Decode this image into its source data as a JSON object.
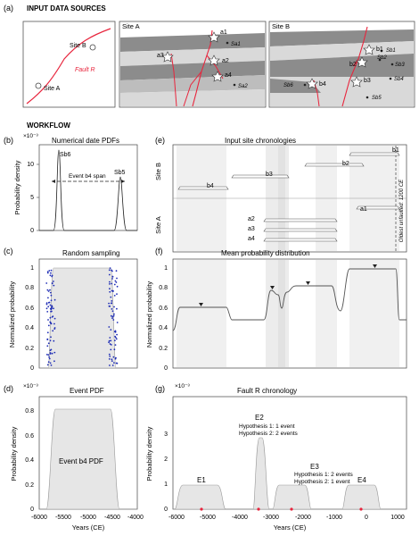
{
  "sections": {
    "a_label": "(a)",
    "a_title": "INPUT DATA SOURCES",
    "workflow_title": "WORKFLOW"
  },
  "map": {
    "site_a": "Site A",
    "site_b": "Site B",
    "fault": "Fault R"
  },
  "site_a_panel": {
    "title": "Site A",
    "labels": [
      "a1",
      "Sa1",
      "a3",
      "a2",
      "a4",
      "Sa2"
    ]
  },
  "site_b_panel": {
    "title": "Site B",
    "labels": [
      "b1",
      "Sb1",
      "b2",
      "Sb2",
      "Sb3",
      "Sb4",
      "Sb6",
      "b4",
      "b3",
      "Sb5"
    ]
  },
  "colors": {
    "fault": "#e8243c",
    "unit_dark": "#8c8c8c",
    "unit_light": "#d9d9d9",
    "pdf_fill": "#e6e6e6",
    "samples": "#1f2db5",
    "event_marker": "#e8243c"
  },
  "panels": {
    "b": {
      "label": "(b)",
      "exponent": "×10⁻³",
      "title": "Numerical date PDFs",
      "ylabel": "Probability density",
      "yticks": [
        "0",
        "5",
        "10"
      ],
      "annotations": [
        "Sb6",
        "Sb5",
        "Event b4 span"
      ]
    },
    "c": {
      "label": "(c)",
      "title": "Random sampling",
      "ylabel": "Normalized probability",
      "yticks": [
        "0",
        "0.2",
        "0.4",
        "0.6",
        "0.8",
        "1"
      ]
    },
    "d": {
      "label": "(d)",
      "exponent": "×10⁻³",
      "title": "Event PDF",
      "ylabel": "Probability density",
      "yticks": [
        "0",
        "0.2",
        "0.4",
        "0.6",
        "0.8"
      ],
      "inner_label": "Event b4 PDF",
      "xticks": [
        "-6000",
        "-5500",
        "-5000",
        "-4500",
        "-4000"
      ],
      "xlabel": "Years (CE)"
    },
    "e": {
      "label": "(e)",
      "title": "Input site chronologies",
      "ylabel_top": "Site B",
      "ylabel_bottom": "Site A",
      "events": [
        "b1",
        "b2",
        "b3",
        "b4",
        "a1",
        "a2",
        "a3",
        "a4"
      ],
      "right_note": "Oldest unfaulted: 1200 CE"
    },
    "f": {
      "label": "(f)",
      "title": "Mean probability distribution",
      "ylabel": "Normalized probability",
      "yticks": [
        "0",
        "0.2",
        "0.4",
        "0.6",
        "0.8",
        "1"
      ]
    },
    "g": {
      "label": "(g)",
      "exponent": "×10⁻³",
      "title": "Fault R chronology",
      "ylabel": "Probability density",
      "yticks": [
        "0",
        "1",
        "2",
        "3"
      ],
      "xticks": [
        "-6000",
        "-5000",
        "-4000",
        "-3000",
        "-2000",
        "-1000",
        "0",
        "1000"
      ],
      "xlabel": "Years (CE)",
      "events": [
        "E1",
        "E2",
        "E3",
        "E4"
      ],
      "e2_hypotheses": [
        "Hypothesis 1: 1 event",
        "Hypothesis 2: 2 events"
      ],
      "e3_hypotheses": [
        "Hypothesis 1: 2 events",
        "Hypothesis 2: 1 event"
      ]
    }
  }
}
